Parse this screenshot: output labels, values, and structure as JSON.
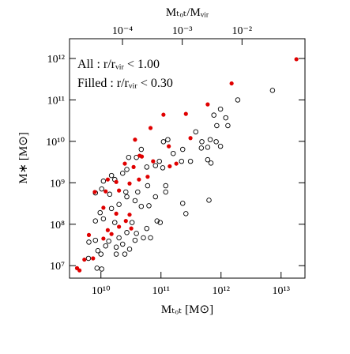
{
  "chart_data": {
    "type": "scatter",
    "xlabel": "Mₜₒₜ [M⊙]",
    "ylabel": "M∗ [M⊙]",
    "x2label": "Mₜₒₜ/Mᵥᵢᵣ",
    "log_x": true,
    "log_y": true,
    "xlim": [
      3000000000.0,
      25000000000000.0
    ],
    "ylim": [
      5000000.0,
      3000000000000.0
    ],
    "x2lim": [
      1.3e-05,
      0.113
    ],
    "xticks": [
      {
        "value": 10000000000.0,
        "label": "10¹⁰"
      },
      {
        "value": 100000000000.0,
        "label": "10¹¹"
      },
      {
        "value": 1000000000000.0,
        "label": "10¹²"
      },
      {
        "value": 10000000000000.0,
        "label": "10¹³"
      }
    ],
    "yticks": [
      {
        "value": 10000000.0,
        "label": "10⁷"
      },
      {
        "value": 100000000.0,
        "label": "10⁸"
      },
      {
        "value": 1000000000.0,
        "label": "10⁹"
      },
      {
        "value": 10000000000.0,
        "label": "10¹⁰"
      },
      {
        "value": 100000000000.0,
        "label": "10¹¹"
      },
      {
        "value": 1000000000000.0,
        "label": "10¹²"
      }
    ],
    "x2ticks": [
      {
        "value": 0.0001,
        "label": "10⁻⁴"
      },
      {
        "value": 0.001,
        "label": "10⁻³"
      },
      {
        "value": 0.01,
        "label": "10⁻²"
      }
    ],
    "series": [
      {
        "name": "All : r/rᵥᵢᵣ < 1.00",
        "color": "#000000",
        "filled": false,
        "x": [
          7200000000000.0,
          1900000000000.0,
          980000000000.0,
          760000000000.0,
          1200000000000.0,
          850000000000.0,
          1300000000000.0,
          380000000000.0,
          660000000000.0,
          480000000000.0,
          830000000000.0,
          980000000000.0,
          600000000000.0,
          470000000000.0,
          230000000000.0,
          110000000000.0,
          130000000000.0,
          160000000000.0,
          220000000000.0,
          310000000000.0,
          600000000000.0,
          680000000000.0,
          94000000000.0,
          107000000000.0,
          81000000000.0,
          58000000000.0,
          47000000000.0,
          39000000000.0,
          29000000000.0,
          27000000000.0,
          23000000000.0,
          17000000000.0,
          15000000000.0,
          11000000000.0,
          10300000000.0,
          8100000000.0,
          14000000000.0,
          26000000000.0,
          41000000000.0,
          60000000000.0,
          120000000000.0,
          120000000000.0,
          81000000000.0,
          63000000000.0,
          47000000000.0,
          37000000000.0,
          27000000000.0,
          20000000000.0,
          15000000000.0,
          9700000000.0,
          11000000000.0,
          8100000000.0,
          17000000000.0,
          33000000000.0,
          39000000000.0,
          58000000000.0,
          86000000000.0,
          97000000000.0,
          230000000000.0,
          630000000000.0,
          260000000000.0,
          13500000000.0,
          20000000000.0,
          23000000000.0,
          30000000000.0,
          25000000000.0,
          18000000000.0,
          12000000000.0,
          8100000000.0,
          8900000000.0,
          18000000000.0,
          10000000000.0,
          8600000000.0,
          10300000000.0,
          37000000000.0,
          51000000000.0,
          67000000000.0,
          6300000000.0,
          6200000000.0,
          27000000000.0
        ],
        "values": [
          170000000000.0,
          100000000000.0,
          60000000000.0,
          43000000000.0,
          37000000000.0,
          24000000000.0,
          24000000000.0,
          17000000000.0,
          11000000000.0,
          9800000000.0,
          9800000000.0,
          7600000000.0,
          7200000000.0,
          6900000000.0,
          6400000000.0,
          9800000000.0,
          11000000000.0,
          5100000000.0,
          3300000000.0,
          3300000000.0,
          3600000000.0,
          3000000000.0,
          3300000000.0,
          2300000000.0,
          2600000000.0,
          2400000000.0,
          6400000000.0,
          4100000000.0,
          4100000000.0,
          2100000000.0,
          1700000000.0,
          1200000000.0,
          1500000000.0,
          1100000000.0,
          710000000.0,
          570000000.0,
          530000000.0,
          600000000.0,
          600000000.0,
          850000000.0,
          850000000.0,
          600000000.0,
          460000000.0,
          280000000.0,
          270000000.0,
          370000000.0,
          460000000.0,
          300000000.0,
          240000000.0,
          190000000.0,
          135000000.0,
          120000000.0,
          110000000.0,
          110000000.0,
          60000000.0,
          79000000.0,
          120000000.0,
          110000000.0,
          320000000.0,
          380000000.0,
          180000000.0,
          39000000.0,
          47000000.0,
          33000000.0,
          25000000.0,
          19000000.0,
          28000000.0,
          30000000.0,
          41000000.0,
          23000000.0,
          19000000.0,
          19000000.0,
          8700000.0,
          8300000.0,
          41000000.0,
          47000000.0,
          47000000.0,
          37000000.0,
          15000000.0,
          63000000.0
        ]
      },
      {
        "name": "Filled : r/rᵥᵢᵣ < 0.30",
        "color": "#e00000",
        "filled": true,
        "x": [
          18000000000000.0,
          1500000000000.0,
          600000000000.0,
          260000000000.0,
          110000000000.0,
          67000000000.0,
          37000000000.0,
          310000000000.0,
          135000000000.0,
          44000000000.0,
          74000000000.0,
          25000000000.0,
          35000000000.0,
          13000000000.0,
          43000000000.0,
          60000000000.0,
          18000000000.0,
          30000000000.0,
          20000000000.0,
          7900000000.0,
          12000000000.0,
          11000000000.0,
          18000000000.0,
          30000000000.0,
          26000000000.0,
          32000000000.0,
          20000000000.0,
          13000000000.0,
          11000000000.0,
          15000000000.0,
          6300000000.0,
          7400000000.0,
          5300000000.0,
          4000000000.0,
          4400000000.0,
          140000000000.0,
          180000000000.0,
          48000000000.0
        ],
        "values": [
          960000000000.0,
          250000000000.0,
          78000000000.0,
          46000000000.0,
          44000000000.0,
          21000000000.0,
          11000000000.0,
          12000000000.0,
          7600000000.0,
          4500000000.0,
          3300000000.0,
          2900000000.0,
          2400000000.0,
          1200000000.0,
          1200000000.0,
          1400000000.0,
          1050000000.0,
          960000000.0,
          650000000.0,
          600000000.0,
          620000000.0,
          250000000.0,
          180000000.0,
          170000000.0,
          120000000.0,
          79000000.0,
          87000000.0,
          72000000.0,
          45000000.0,
          58000000.0,
          55000000.0,
          15000000.0,
          14000000.0,
          8700000.0,
          7700000.0,
          2500000000.0,
          2900000000.0,
          4300000000.0
        ]
      }
    ]
  }
}
